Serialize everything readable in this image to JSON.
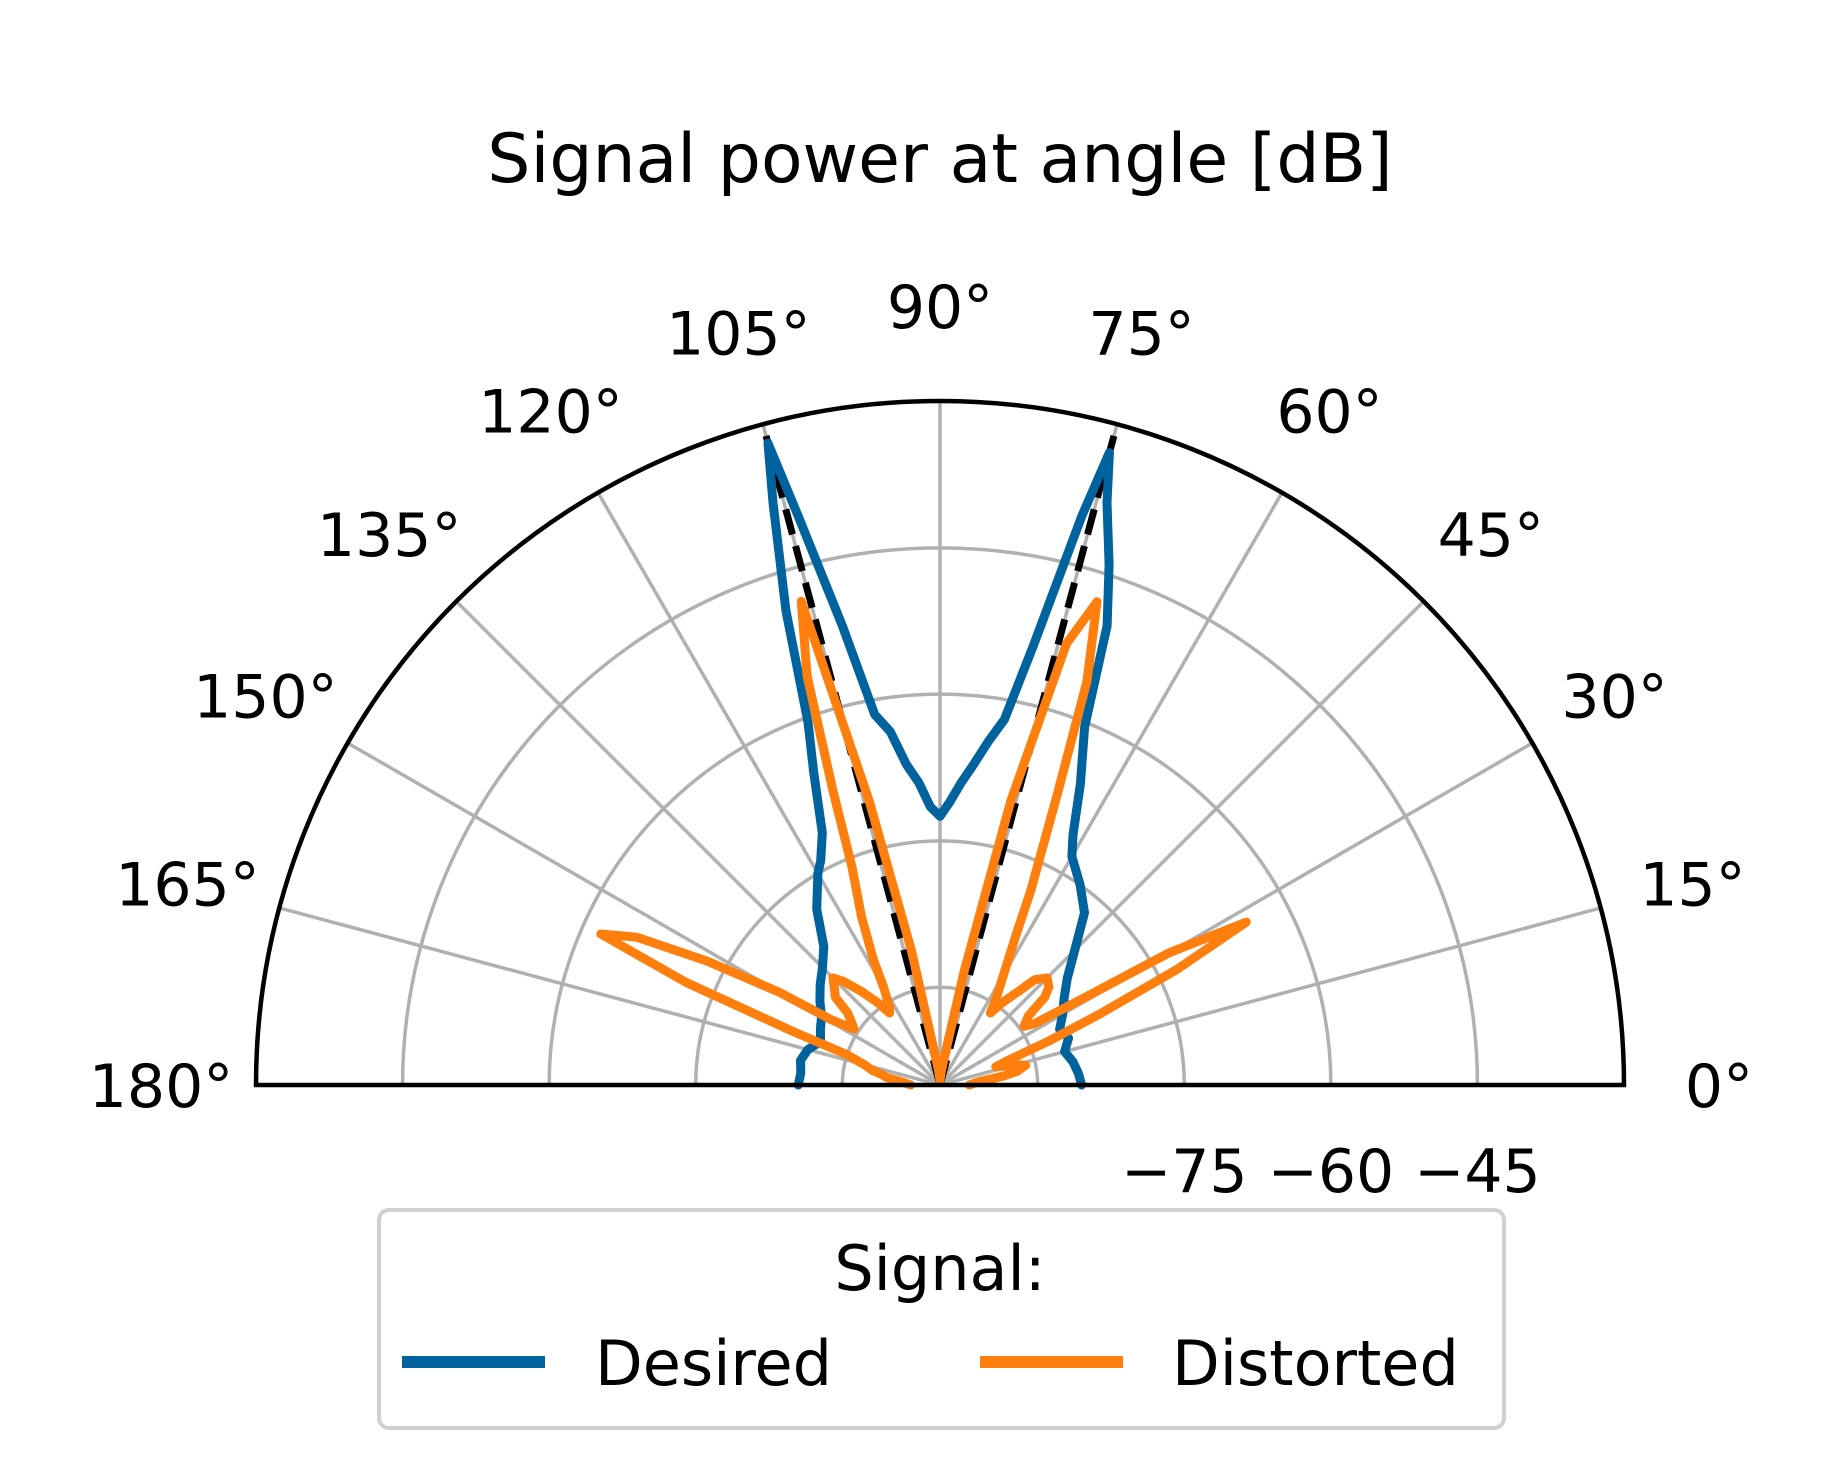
{
  "colors": {
    "desired": "#00639e",
    "distorted": "#ff7f0e",
    "reference": "#000000",
    "grid": "#b0b0b0",
    "legend_border": "#d0d0d0"
  },
  "chart_data": {
    "type": "polar-line",
    "title": "Signal power at angle [dB]",
    "theta_range_deg": [
      0,
      180
    ],
    "r_range_db": [
      -100,
      -30
    ],
    "angle_ticks": [
      "0°",
      "15°",
      "30°",
      "45°",
      "60°",
      "75°",
      "90°",
      "105°",
      "120°",
      "135°",
      "150°",
      "165°",
      "180°"
    ],
    "radial_ticks": [
      {
        "value": -75,
        "label": "−75"
      },
      {
        "value": -60,
        "label": "−60"
      },
      {
        "value": -45,
        "label": "−45"
      }
    ],
    "grid": true,
    "legend": {
      "title": "Signal:",
      "placement": "bottom-center",
      "ncol": 2,
      "entries": [
        "Desired",
        "Distorted"
      ]
    },
    "reference_lines": [
      {
        "style": "dashed",
        "theta_deg": 75,
        "r_db": [
          -100,
          -30
        ]
      },
      {
        "style": "dashed",
        "theta_deg": 105,
        "r_db": [
          -100,
          -30
        ]
      }
    ],
    "series": [
      {
        "name": "Desired",
        "theta_deg": [
          0,
          5,
          10,
          15,
          20,
          25,
          30,
          35,
          40,
          45,
          50,
          55,
          60,
          62,
          65,
          68,
          70,
          72,
          74,
          75,
          76,
          78,
          80,
          82,
          84,
          86,
          88,
          90,
          92,
          94,
          96,
          98,
          100,
          102,
          104,
          105,
          106,
          108,
          110,
          112,
          115,
          118,
          120,
          125,
          130,
          135,
          140,
          145,
          150,
          155,
          160,
          165,
          170,
          175,
          180
        ],
        "r_db": [
          -85.5,
          -85.8,
          -86.2,
          -86.8,
          -86.0,
          -86.5,
          -85.5,
          -84.5,
          -83.0,
          -80.5,
          -77.0,
          -75.0,
          -73.0,
          -71.0,
          -66.0,
          -60.5,
          -50.0,
          -44.0,
          -38.0,
          -33.0,
          -40.0,
          -54.0,
          -62.0,
          -64.5,
          -67.0,
          -69.0,
          -71.0,
          -72.5,
          -71.5,
          -69.0,
          -67.0,
          -63.5,
          -61.5,
          -52.0,
          -40.0,
          -32.0,
          -38.0,
          -49.0,
          -60.5,
          -65.5,
          -71.5,
          -74.0,
          -75.0,
          -78.0,
          -81.5,
          -83.0,
          -84.0,
          -85.0,
          -86.0,
          -86.5,
          -87.0,
          -86.0,
          -85.5,
          -85.7,
          -85.5
        ]
      },
      {
        "name": "Distorted",
        "theta_deg": [
          0,
          5,
          8,
          10,
          13,
          15,
          18,
          20,
          22,
          24,
          26,
          28,
          30,
          31,
          33,
          35,
          38,
          40,
          42,
          45,
          48,
          50,
          53,
          55,
          57,
          60,
          63,
          65,
          68,
          70,
          72,
          74,
          76,
          78,
          80,
          84,
          90,
          96,
          100,
          102,
          104,
          106,
          108,
          110,
          112,
          115,
          118,
          120,
          123,
          125,
          127,
          130,
          133,
          135,
          138,
          140,
          142,
          145,
          147,
          149,
          150,
          152,
          154,
          156,
          158,
          160,
          162,
          165,
          168,
          170,
          172,
          175,
          180
        ],
        "r_db": [
          -97.0,
          -96.0,
          -93.5,
          -92.0,
          -91.0,
          -92.0,
          -94.0,
          -92.5,
          -88.0,
          -82.0,
          -73.0,
          -64.5,
          -73.0,
          -82.0,
          -88.5,
          -89.5,
          -88.5,
          -86.0,
          -85.0,
          -84.5,
          -85.5,
          -87.5,
          -89.5,
          -91.0,
          -89.5,
          -87.0,
          -83.0,
          -78.0,
          -68.0,
          -56.0,
          -48.0,
          -53.0,
          -70.0,
          -88.0,
          -96.0,
          -98.5,
          -99.5,
          -98.5,
          -96.0,
          -86.0,
          -70.0,
          -48.5,
          -56.0,
          -68.0,
          -76.0,
          -81.0,
          -85.5,
          -88.5,
          -90.5,
          -91.0,
          -89.5,
          -87.5,
          -85.5,
          -84.5,
          -85.5,
          -86.0,
          -88.0,
          -89.0,
          -89.5,
          -87.0,
          -81.0,
          -73.0,
          -65.5,
          -62.0,
          -72.0,
          -84.0,
          -90.0,
          -92.0,
          -93.0,
          -94.0,
          -94.5,
          -96.0,
          -97.0
        ]
      }
    ]
  }
}
